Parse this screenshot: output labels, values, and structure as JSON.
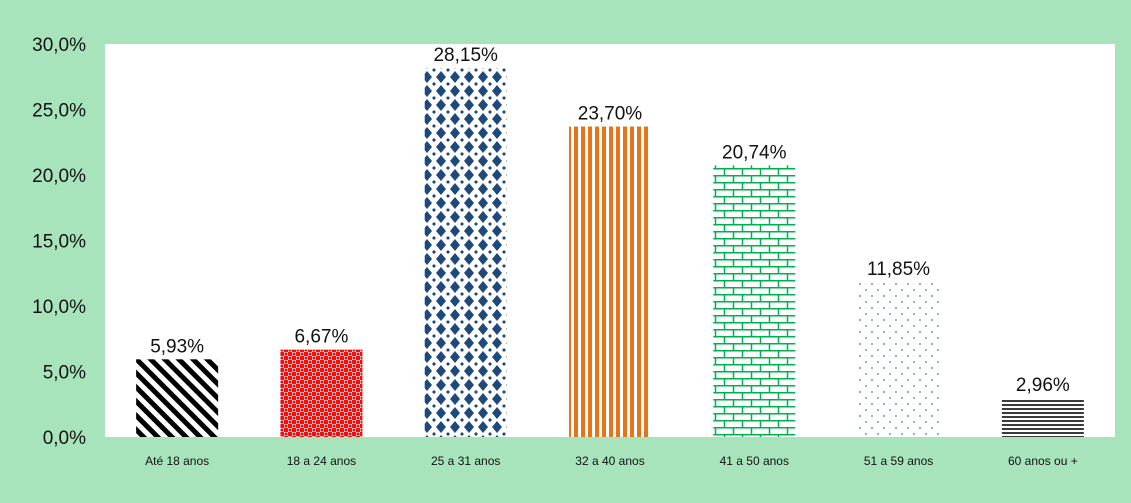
{
  "chart_data": {
    "type": "bar",
    "categories": [
      "Até 18 anos",
      "18 a 24 anos",
      "25 a 31 anos",
      "32 a 40 anos",
      "41 a 50 anos",
      "51 a 59 anos",
      "60 anos ou +"
    ],
    "values": [
      5.93,
      6.67,
      28.15,
      23.7,
      20.74,
      11.85,
      2.96
    ],
    "data_labels": [
      "5,93%",
      "6,67%",
      "28,15%",
      "23,70%",
      "20,74%",
      "11,85%",
      "2,96%"
    ],
    "y_ticks": [
      0,
      5,
      10,
      15,
      20,
      25,
      30
    ],
    "y_tick_labels": [
      "0,0%",
      "5,0%",
      "10,0%",
      "15,0%",
      "20,0%",
      "25,0%",
      "30,0%"
    ],
    "ylim": [
      0,
      30
    ],
    "grid": false,
    "legend": "none",
    "title": "",
    "xlabel": "",
    "ylabel": "",
    "fill_patterns": [
      "diagonal-stripes",
      "checker",
      "diamonds",
      "vertical-stripes",
      "brick",
      "dots",
      "horizontal-stripes"
    ],
    "colors": {
      "frame_background": "#a8e4bb",
      "plot_background": "#ffffff",
      "bar_1": "#000000",
      "bar_2": "#ee1111",
      "bar_3": "#1f497d",
      "bar_4": "#e8741a",
      "bar_5": "#00b050",
      "bar_6": "#4a6fc0",
      "bar_7": "#3a3a3a"
    }
  }
}
